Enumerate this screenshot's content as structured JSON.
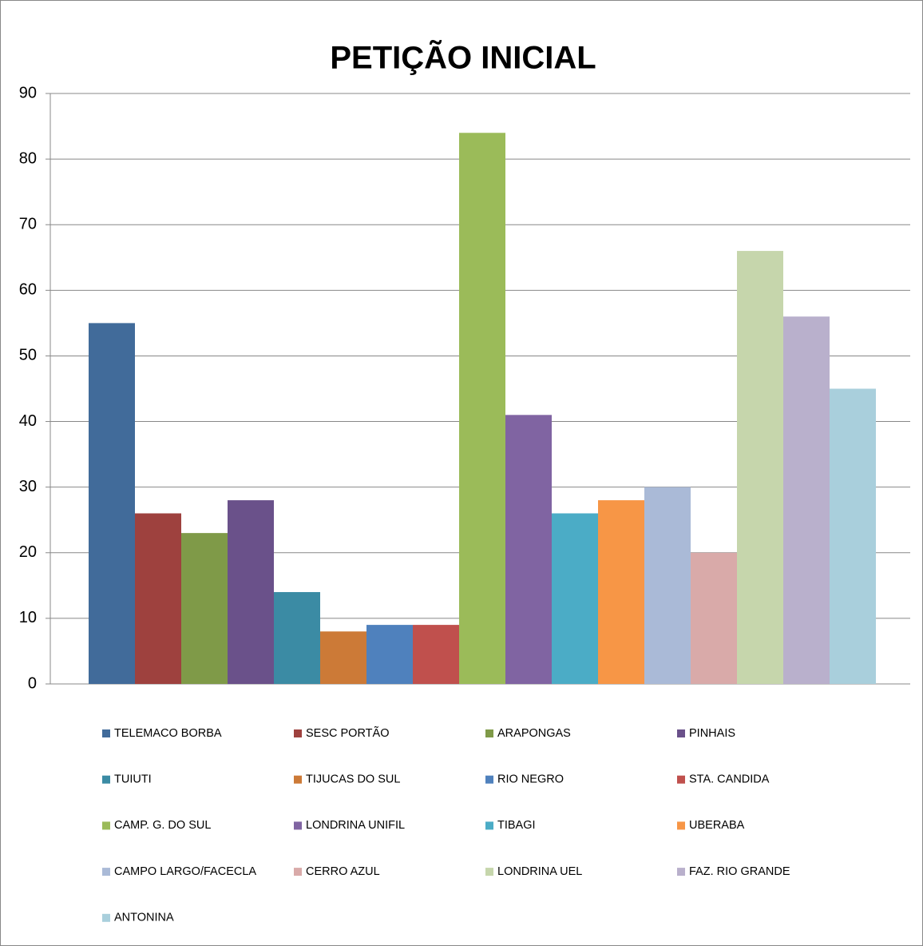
{
  "chart_data": {
    "type": "bar",
    "title": "PETIÇÃO INICIAL",
    "ylim": [
      0,
      90
    ],
    "yticks": [
      0,
      10,
      20,
      30,
      40,
      50,
      60,
      70,
      80,
      90
    ],
    "grid": true,
    "series": [
      {
        "name": "TELEMACO BORBA",
        "color": "#416b9a",
        "values": [
          55
        ]
      },
      {
        "name": "SESC PORTÃO",
        "color": "#9e413e",
        "values": [
          26
        ]
      },
      {
        "name": "ARAPONGAS",
        "color": "#7f9a48",
        "values": [
          23
        ]
      },
      {
        "name": "PINHAIS",
        "color": "#6a518a",
        "values": [
          28
        ]
      },
      {
        "name": "TUIUTI",
        "color": "#3b8ba4",
        "values": [
          14
        ]
      },
      {
        "name": "TIJUCAS DO SUL",
        "color": "#cc7a37",
        "values": [
          8
        ]
      },
      {
        "name": "RIO NEGRO",
        "color": "#4f81bd",
        "values": [
          9
        ]
      },
      {
        "name": "STA. CANDIDA",
        "color": "#c0504d",
        "values": [
          9
        ]
      },
      {
        "name": "CAMP. G. DO SUL",
        "color": "#9bbb59",
        "values": [
          84
        ]
      },
      {
        "name": "LONDRINA UNIFIL",
        "color": "#8064a2",
        "values": [
          41
        ]
      },
      {
        "name": "TIBAGI",
        "color": "#4bacc6",
        "values": [
          26
        ]
      },
      {
        "name": "UBERABA",
        "color": "#f79646",
        "values": [
          28
        ]
      },
      {
        "name": "CAMPO LARGO/FACECLA",
        "color": "#aabad7",
        "values": [
          30
        ]
      },
      {
        "name": "CERRO AZUL",
        "color": "#d9aaa9",
        "values": [
          20
        ]
      },
      {
        "name": "LONDRINA UEL",
        "color": "#c6d6ac",
        "values": [
          66
        ]
      },
      {
        "name": "FAZ. RIO GRANDE",
        "color": "#b9b0cc",
        "values": [
          56
        ]
      },
      {
        "name": "ANTONINA",
        "color": "#a9cfdc",
        "values": [
          45
        ]
      }
    ]
  }
}
